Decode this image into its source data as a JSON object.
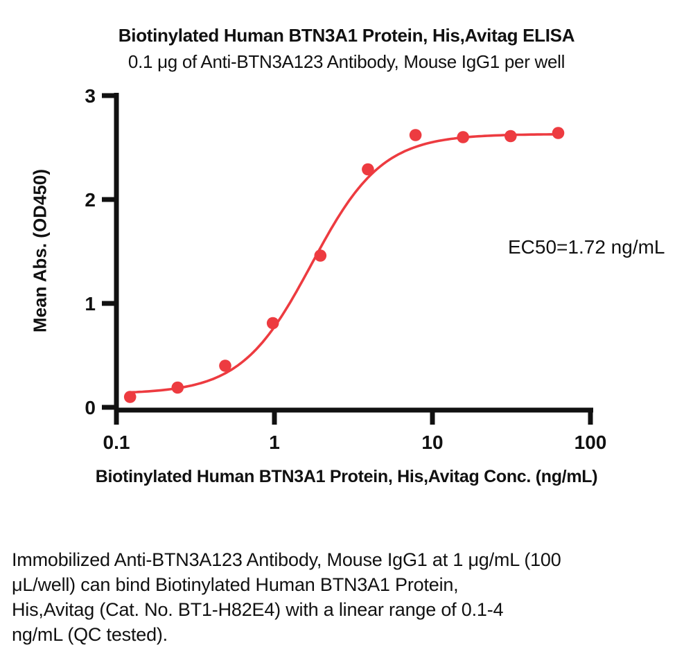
{
  "caption": {
    "text": "Immobilized Anti-BTN3A123 Antibody, Mouse IgG1 at 1 μg/mL (100\nμL/well) can bind Biotinylated Human BTN3A1 Protein,\nHis,Avitag (Cat. No. BT1-H82E4) with a linear range of 0.1-4\nng/mL (QC tested).",
    "linear_range": "0.1-4 ng/mL",
    "catalog_number": "BT1-H82E4"
  },
  "chart_data": {
    "type": "scatter",
    "title": "Biotinylated Human BTN3A1 Protein, His,Avitag ELISA",
    "subtitle": "0.1 μg of Anti-BTN3A123 Antibody, Mouse IgG1 per well",
    "xlabel": "Biotinylated Human BTN3A1 Protein, His,Avitag Conc. (ng/mL)",
    "ylabel": "Mean Abs. (OD450)",
    "annotation": "EC50=1.72  ng/mL",
    "ec50_value": "1.72",
    "ec50_unit": "ng/mL",
    "x_scale": "log",
    "xlim": [
      0.1,
      100
    ],
    "ylim": [
      0,
      3
    ],
    "x_ticks": [
      "0.1",
      "1",
      "10",
      "100"
    ],
    "y_ticks": [
      "0",
      "1",
      "2",
      "3"
    ],
    "grid": false,
    "legend": "none",
    "series_color": "#ED3B40",
    "axis_color": "#111111",
    "points": {
      "x": [
        0.122,
        0.244,
        0.488,
        0.977,
        1.953,
        3.906,
        7.813,
        15.625,
        31.25,
        62.5
      ],
      "y": [
        0.1,
        0.19,
        0.4,
        0.81,
        1.46,
        2.29,
        2.62,
        2.6,
        2.61,
        2.64
      ]
    },
    "fit": {
      "model": "4PL",
      "bottom": 0.13,
      "top": 2.63,
      "ec50": 1.72,
      "hill": 1.95,
      "draw_from": 0.122,
      "draw_to": 66
    }
  }
}
